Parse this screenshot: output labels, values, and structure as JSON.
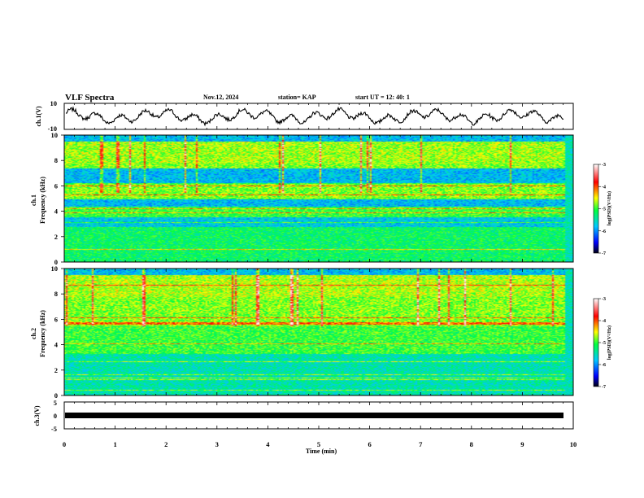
{
  "header": {
    "title": "VLF Spectra",
    "date": "Nov.12, 2024",
    "station": "station= KAP",
    "start": "start  UT =   12: 40: 1"
  },
  "chart_data": [
    {
      "type": "line",
      "panel": "ch1-waveform",
      "ylabel": "ch.1(V)",
      "ylim": [
        -10,
        10
      ],
      "yticks": [
        "10",
        "-10"
      ],
      "xlim": [
        0,
        10
      ],
      "description_series": "oscillating waveform approx. -8 to 8 V"
    },
    {
      "type": "heatmap",
      "panel": "ch1-spectrogram",
      "ylabel": "ch.1\nFrequency (kHz)",
      "ylim": [
        0,
        10
      ],
      "yticks": [
        "0",
        "2",
        "4",
        "6",
        "8",
        "10"
      ],
      "xlim": [
        0,
        10
      ],
      "colorbar": {
        "label": "log(PSD)(V²/Hz)",
        "ticks": [
          "-3",
          "-4",
          "-5",
          "-6",
          "-7"
        ],
        "range": [
          -7,
          -3
        ]
      }
    },
    {
      "type": "heatmap",
      "panel": "ch2-spectrogram",
      "ylabel": "ch.2\nFrequency (kHz)",
      "ylim": [
        0,
        10
      ],
      "yticks": [
        "0",
        "2",
        "4",
        "6",
        "8",
        "10"
      ],
      "xlim": [
        0,
        10
      ],
      "colorbar": {
        "label": "log(PSD)(V²/Hz)",
        "ticks": [
          "-3",
          "-4",
          "-5",
          "-6",
          "-7"
        ],
        "range": [
          -7,
          -3
        ]
      }
    },
    {
      "type": "line",
      "panel": "ch3-waveform",
      "ylabel": "ch.3(V)",
      "ylim": [
        -5,
        5
      ],
      "yticks": [
        "5",
        "0",
        "-5"
      ],
      "xlim": [
        0,
        10
      ],
      "xlabel": "Time (min)",
      "xticks": [
        "0",
        "1",
        "2",
        "3",
        "4",
        "5",
        "6",
        "7",
        "8",
        "9",
        "10"
      ],
      "description_series": "near-constant thick band at about 0 V"
    }
  ],
  "colors": {
    "axis": "#000000",
    "trace": "#000000"
  }
}
